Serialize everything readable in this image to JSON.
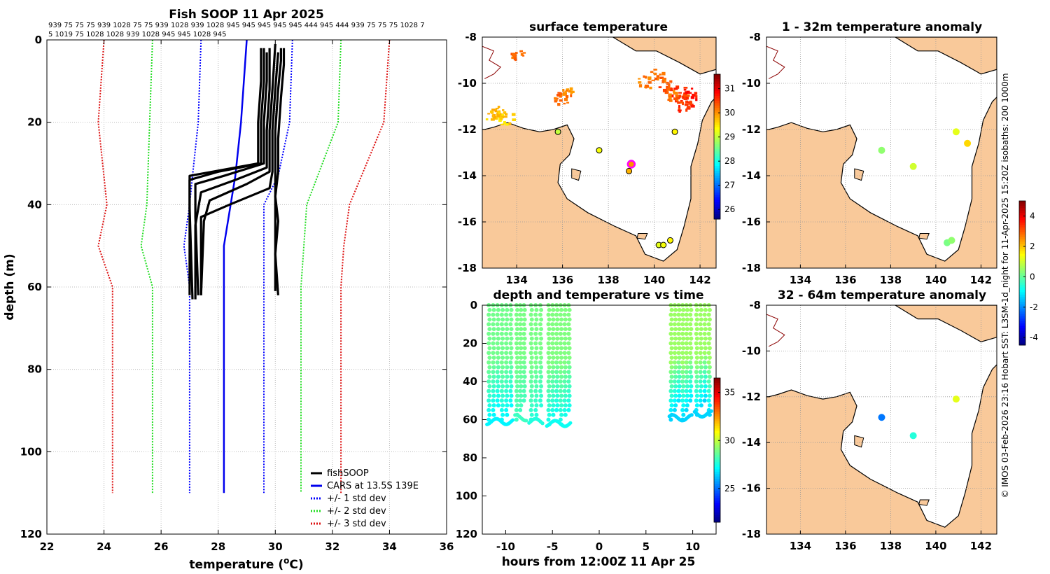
{
  "chart_data": [
    {
      "id": "profile",
      "type": "line",
      "title": "Fish SOOP 11 Apr 2025",
      "subtitle_line1": "939 75 75 75 939 1028 75 75 939 1028 939 1028 945 945 945 945 945 444 945 444 939 75 75 75 1028 7",
      "subtitle_line2": "5 1019 75 1028 1028 939 1028 945 945 1028 945",
      "xlabel": "temperature (",
      "xlabel_sup": "o",
      "xlabel_end": "C)",
      "ylabel": "depth (m)",
      "xlim": [
        22,
        36
      ],
      "ylim": [
        120,
        0
      ],
      "xticks": [
        22,
        24,
        26,
        28,
        30,
        32,
        34,
        36
      ],
      "yticks": [
        0,
        20,
        40,
        60,
        80,
        100,
        120
      ],
      "legend": [
        "fishSOOP",
        "CARS at 13.5S 139E",
        "+/- 1 std dev",
        "+/- 2 std dev",
        "+/- 3 std dev"
      ],
      "cars_mean": {
        "depth": [
          0,
          20,
          33,
          50,
          60,
          110
        ],
        "temp": [
          29.0,
          28.8,
          28.6,
          28.2,
          28.2,
          28.2
        ]
      },
      "std1_lo": {
        "depth": [
          0,
          20,
          33,
          40,
          45,
          50,
          60,
          110
        ],
        "temp": [
          27.4,
          27.3,
          27.1,
          27.0,
          26.9,
          26.8,
          27.0,
          27.0
        ]
      },
      "std1_hi": {
        "depth": [
          0,
          20,
          33,
          40,
          45,
          50,
          60,
          110
        ],
        "temp": [
          30.6,
          30.5,
          30.1,
          29.6,
          29.6,
          29.6,
          29.6,
          29.6
        ]
      },
      "std2_lo": {
        "depth": [
          0,
          20,
          40,
          50,
          60,
          110
        ],
        "temp": [
          25.7,
          25.6,
          25.5,
          25.3,
          25.7,
          25.7
        ]
      },
      "std2_hi": {
        "depth": [
          0,
          20,
          40,
          50,
          60,
          110
        ],
        "temp": [
          32.3,
          32.2,
          31.1,
          31.0,
          30.9,
          30.9
        ]
      },
      "std3_lo": {
        "depth": [
          0,
          20,
          40,
          50,
          60,
          110
        ],
        "temp": [
          24.0,
          23.8,
          24.1,
          23.8,
          24.3,
          24.3
        ]
      },
      "std3_hi": {
        "depth": [
          0,
          20,
          40,
          50,
          60,
          110
        ],
        "temp": [
          34.0,
          33.8,
          32.6,
          32.4,
          32.3,
          32.3
        ]
      },
      "fish": [
        {
          "depth": [
            2,
            10,
            20,
            30,
            32,
            33,
            40,
            62
          ],
          "temp": [
            29.5,
            29.5,
            29.4,
            29.4,
            27.8,
            27.0,
            27.0,
            27.0
          ]
        },
        {
          "depth": [
            2,
            10,
            20,
            30,
            32,
            34,
            41,
            63
          ],
          "temp": [
            29.6,
            29.6,
            29.5,
            29.5,
            28.0,
            27.0,
            27.0,
            27.1
          ]
        },
        {
          "depth": [
            3,
            10,
            20,
            30,
            33,
            35,
            43,
            62
          ],
          "temp": [
            29.7,
            29.7,
            29.6,
            29.6,
            28.2,
            27.2,
            27.2,
            27.3
          ]
        },
        {
          "depth": [
            2,
            12,
            22,
            31,
            34,
            37,
            45,
            63
          ],
          "temp": [
            29.8,
            29.8,
            29.7,
            29.7,
            28.6,
            27.4,
            27.2,
            27.2
          ]
        },
        {
          "depth": [
            1,
            12,
            22,
            32,
            35,
            39,
            44,
            62
          ],
          "temp": [
            30.0,
            29.9,
            29.8,
            29.8,
            29.0,
            27.7,
            27.5,
            27.4
          ]
        },
        {
          "depth": [
            3,
            12,
            22,
            32,
            36,
            40,
            43,
            62
          ],
          "temp": [
            30.1,
            30.0,
            29.9,
            29.9,
            29.8,
            28.4,
            27.4,
            27.4
          ]
        },
        {
          "depth": [
            2,
            5,
            12,
            22,
            30,
            35,
            42,
            50,
            61
          ],
          "temp": [
            30.2,
            30.2,
            30.1,
            30.0,
            30.0,
            30.0,
            30.0,
            30.0,
            30.0
          ]
        },
        {
          "depth": [
            2,
            6,
            14,
            24,
            32,
            38,
            44,
            52,
            62
          ],
          "temp": [
            30.3,
            30.3,
            30.2,
            30.1,
            30.1,
            30.0,
            30.1,
            30.0,
            30.1
          ]
        }
      ]
    },
    {
      "id": "sst",
      "type": "heatmap",
      "title": "surface temperature",
      "xlim": [
        132.5,
        142.7
      ],
      "ylim": [
        -18,
        -8
      ],
      "xticks": [
        134,
        136,
        138,
        140,
        142
      ],
      "yticks": [
        -8,
        -10,
        -12,
        -14,
        -16,
        -18
      ],
      "clim": [
        25.6,
        31.6
      ],
      "cticks": [
        26,
        27,
        28,
        29,
        30,
        31
      ],
      "stations": [
        {
          "lon": 135.8,
          "lat": -12.1,
          "v": 29.0
        },
        {
          "lon": 140.9,
          "lat": -12.1,
          "v": 29.4
        },
        {
          "lon": 137.6,
          "lat": -12.9,
          "v": 29.3
        },
        {
          "lon": 139.0,
          "lat": -13.5,
          "v": 30.0,
          "mark": "latest"
        },
        {
          "lon": 138.9,
          "lat": -13.8,
          "v": 29.8
        },
        {
          "lon": 140.7,
          "lat": -16.8,
          "v": 29.4
        },
        {
          "lon": 140.2,
          "lat": -17.0,
          "v": 29.2
        },
        {
          "lon": 140.4,
          "lat": -17.0,
          "v": 29.3
        }
      ]
    },
    {
      "id": "dt",
      "type": "scatter",
      "title": "depth and temperature vs time",
      "xlabel": "hours from 12:00Z 11 Apr 25",
      "xlim": [
        -12.5,
        12.5
      ],
      "ylim": [
        120,
        0
      ],
      "xticks": [
        -10,
        -5,
        0,
        5,
        10
      ],
      "yticks": [
        0,
        20,
        40,
        60,
        80,
        100,
        120
      ],
      "clim": [
        21.5,
        36.5
      ],
      "cticks": [
        25,
        30,
        35
      ],
      "dives": [
        {
          "t0": -12,
          "t1": -9.2,
          "depth": 62,
          "surf": 28.8,
          "bot": 27.0
        },
        {
          "t0": -9.0,
          "t1": -7.8,
          "depth": 60,
          "surf": 28.9,
          "bot": 28.0
        },
        {
          "t0": -7.5,
          "t1": -6.0,
          "depth": 62,
          "surf": 28.9,
          "bot": 27.6
        },
        {
          "t0": -5.6,
          "t1": -3.0,
          "depth": 63,
          "surf": 29.0,
          "bot": 27.3
        },
        {
          "t0": 7.5,
          "t1": 10.0,
          "depth": 60,
          "surf": 29.4,
          "bot": 26.5
        },
        {
          "t0": 10.2,
          "t1": 12.0,
          "depth": 58,
          "surf": 29.4,
          "bot": 26.5
        }
      ]
    },
    {
      "id": "anom1",
      "type": "scatter",
      "title": "1 - 32m temperature anomaly",
      "xlim": [
        132.5,
        142.7
      ],
      "ylim": [
        -18,
        -8
      ],
      "xticks": [
        134,
        136,
        138,
        140,
        142
      ],
      "yticks": [
        -8,
        -10,
        -12,
        -14,
        -16,
        -18
      ],
      "clim": [
        -4.5,
        5
      ],
      "cticks": [
        4,
        2,
        0,
        -2,
        -4
      ],
      "points": [
        {
          "lon": 137.6,
          "lat": -12.9,
          "v": 0.4
        },
        {
          "lon": 139.0,
          "lat": -13.6,
          "v": 1.0
        },
        {
          "lon": 140.9,
          "lat": -12.1,
          "v": 1.2
        },
        {
          "lon": 141.4,
          "lat": -12.6,
          "v": 1.8
        },
        {
          "lon": 140.5,
          "lat": -16.9,
          "v": 0.2
        },
        {
          "lon": 140.7,
          "lat": -16.8,
          "v": 0.4
        }
      ]
    },
    {
      "id": "anom2",
      "type": "scatter",
      "title": "32 - 64m temperature anomaly",
      "xlim": [
        132.5,
        142.7
      ],
      "ylim": [
        -18,
        -8
      ],
      "xticks": [
        134,
        136,
        138,
        140,
        142
      ],
      "yticks": [
        -8,
        -10,
        -12,
        -14,
        -16,
        -18
      ],
      "points": [
        {
          "lon": 137.6,
          "lat": -12.9,
          "v": -2.2
        },
        {
          "lon": 139.0,
          "lat": -13.7,
          "v": -0.6
        },
        {
          "lon": 140.9,
          "lat": -12.1,
          "v": 1.2
        }
      ]
    }
  ],
  "credit": "© IMOS 03-Feb-2026 23:16 Hobart SST: L3SM-1d_night for 11-Apr-2025 15:20Z isobaths: 200  1000m",
  "colors": {
    "land": "#f9c99a",
    "fish": "#000000",
    "cars": "#0000ee",
    "std1": "#0000ff",
    "std2": "#22dd22",
    "std3": "#dd1111",
    "latest": "#ff00ff"
  }
}
